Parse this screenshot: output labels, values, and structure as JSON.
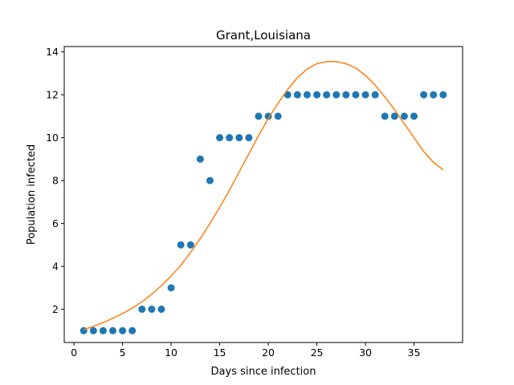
{
  "chart_data": {
    "type": "scatter",
    "title": "Grant,Louisiana",
    "xlabel": "Days since infection",
    "ylabel": "Population infected",
    "xlim": [
      -1,
      40
    ],
    "ylim": [
      0.45,
      14.25
    ],
    "xticks": [
      0,
      5,
      10,
      15,
      20,
      25,
      30,
      35
    ],
    "yticks": [
      2,
      4,
      6,
      8,
      10,
      12,
      14
    ],
    "grid": false,
    "series": [
      {
        "kind": "scatter",
        "color": "#1f77b4",
        "x": [
          1,
          2,
          3,
          4,
          5,
          6,
          7,
          8,
          9,
          10,
          11,
          12,
          13,
          14,
          15,
          16,
          17,
          18,
          19,
          20,
          21,
          22,
          23,
          24,
          25,
          26,
          27,
          28,
          29,
          30,
          31,
          32,
          33,
          34,
          35,
          36,
          37,
          38
        ],
        "y": [
          1,
          1,
          1,
          1,
          1,
          1,
          2,
          2,
          2,
          3,
          5,
          5,
          9,
          8,
          10,
          10,
          10,
          10,
          11,
          11,
          11,
          12,
          12,
          12,
          12,
          12,
          12,
          12,
          12,
          12,
          12,
          11,
          11,
          11,
          11,
          12,
          12,
          12
        ]
      },
      {
        "kind": "line",
        "color": "#ff7f0e",
        "x": [
          1,
          2,
          3,
          4,
          5,
          6,
          7,
          8,
          9,
          10,
          11,
          12,
          13,
          14,
          15,
          16,
          17,
          18,
          19,
          20,
          21,
          22,
          23,
          24,
          25,
          26,
          27,
          28,
          29,
          30,
          31,
          32,
          33,
          34,
          35,
          36,
          37,
          38
        ],
        "y": [
          1.05,
          1.2,
          1.38,
          1.58,
          1.8,
          2.05,
          2.35,
          2.7,
          3.1,
          3.55,
          4.05,
          4.65,
          5.3,
          6.0,
          6.75,
          7.55,
          8.4,
          9.25,
          10.1,
          10.9,
          11.6,
          12.25,
          12.8,
          13.2,
          13.45,
          13.55,
          13.55,
          13.45,
          13.25,
          12.9,
          12.45,
          11.9,
          11.3,
          10.65,
          10.0,
          9.35,
          8.85,
          8.5
        ]
      }
    ]
  }
}
